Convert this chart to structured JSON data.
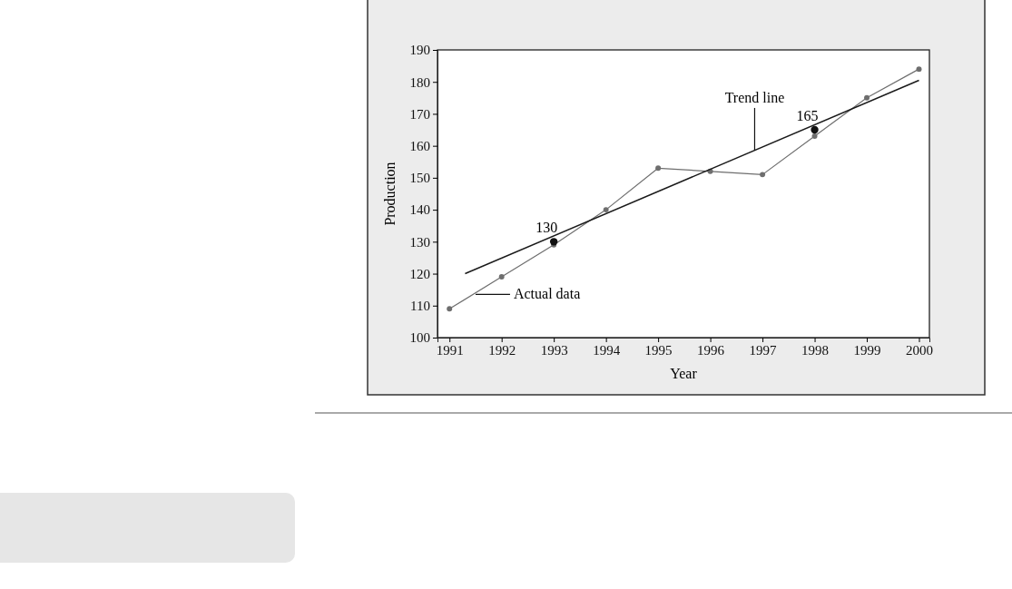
{
  "chart_data": {
    "type": "line",
    "xlabel": "Year",
    "ylabel": "Production",
    "x": [
      1991,
      1992,
      1993,
      1994,
      1995,
      1996,
      1997,
      1998,
      1999,
      2000
    ],
    "xlim": [
      1990.77,
      2000.2
    ],
    "xticks": [
      1991,
      1992,
      1993,
      1994,
      1995,
      1996,
      1997,
      1998,
      1999,
      2000
    ],
    "ylim": [
      100,
      190
    ],
    "yticks": [
      100,
      110,
      120,
      130,
      140,
      150,
      160,
      170,
      180,
      190
    ],
    "grid": false,
    "marker": "circle",
    "line_style": "solid",
    "series": [
      {
        "color": "#6e6e6e",
        "values": [
          109,
          119,
          129,
          140,
          153,
          152,
          151,
          163,
          175,
          184
        ]
      },
      {
        "color": "#1a1a1a",
        "marker": "none",
        "x": [
          1991.3,
          2000
        ],
        "values": [
          120,
          180.5
        ]
      },
      {
        "type": "scatter",
        "color": "#111111",
        "x": [
          1993,
          1998
        ],
        "values": [
          130,
          165
        ],
        "value_labels": [
          "130",
          "165"
        ]
      }
    ],
    "annotations": [
      {
        "text": "Actual data",
        "x": 1991.5,
        "y": 113.5
      },
      {
        "text": "Trend line",
        "x": 1996.85,
        "y": 158.5
      }
    ]
  }
}
